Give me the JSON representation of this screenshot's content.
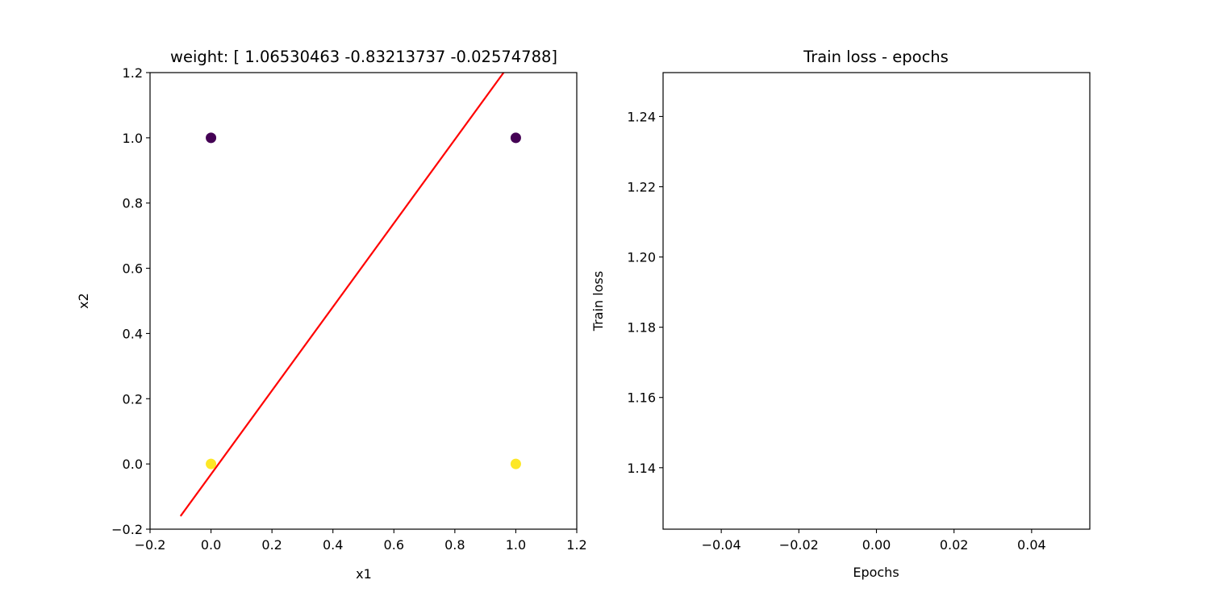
{
  "chart_data": [
    {
      "type": "scatter",
      "title": "weight: [ 1.06530463 -0.83213737 -0.02574788]",
      "xlabel": "x1",
      "ylabel": "x2",
      "xlim": [
        -0.2,
        1.2
      ],
      "ylim": [
        -0.2,
        1.2
      ],
      "xticks": [
        "−0.2",
        "0.0",
        "0.2",
        "0.4",
        "0.6",
        "0.8",
        "1.0",
        "1.2"
      ],
      "yticks": [
        "−0.2",
        "0.0",
        "0.2",
        "0.4",
        "0.6",
        "0.8",
        "1.0",
        "1.2"
      ],
      "xtick_values": [
        -0.2,
        0.0,
        0.2,
        0.4,
        0.6,
        0.8,
        1.0,
        1.2
      ],
      "ytick_values": [
        -0.2,
        0.0,
        0.2,
        0.4,
        0.6,
        0.8,
        1.0,
        1.2
      ],
      "points": [
        {
          "x": 0,
          "y": 1,
          "color": "#440154"
        },
        {
          "x": 1,
          "y": 1,
          "color": "#440154"
        },
        {
          "x": 0,
          "y": 0,
          "color": "#fde725"
        },
        {
          "x": 1,
          "y": 0,
          "color": "#fde725"
        }
      ],
      "line": {
        "x": [
          -0.1,
          0.96
        ],
        "y": [
          -0.16,
          1.2
        ],
        "color": "#ff0000"
      },
      "grid": false
    },
    {
      "type": "line",
      "title": "Train loss - epochs",
      "xlabel": "Epochs",
      "ylabel": "Train loss",
      "xlim": [
        -0.055,
        0.055
      ],
      "ylim": [
        1.1225,
        1.2525
      ],
      "xticks": [
        "−0.04",
        "−0.02",
        "0.00",
        "0.02",
        "0.04"
      ],
      "yticks": [
        "1.14",
        "1.16",
        "1.18",
        "1.20",
        "1.22",
        "1.24"
      ],
      "xtick_values": [
        -0.04,
        -0.02,
        0.0,
        0.02,
        0.04
      ],
      "ytick_values": [
        1.14,
        1.16,
        1.18,
        1.2,
        1.22,
        1.24
      ],
      "series": [],
      "grid": false
    }
  ]
}
